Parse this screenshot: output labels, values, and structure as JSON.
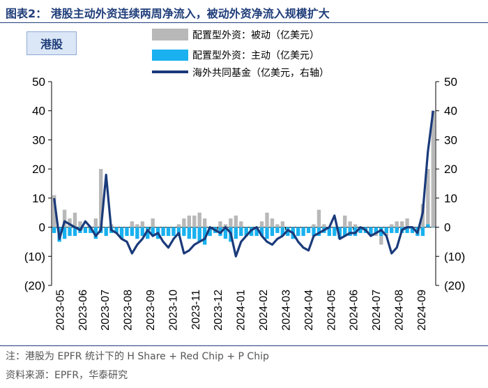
{
  "title": "图表2：  港股主动外资连续两周净流入，被动外资净流入规模扩大",
  "panel_tag": "港股",
  "legend": {
    "passive": "配置型外资：被动（亿美元）",
    "active": "配置型外资：主动（亿美元）",
    "hedge": "海外共同基金（亿美元，右轴）"
  },
  "footnote": "注：港股为 EPFR 统计下的 H Share + Red Chip + P Chip",
  "source": "资料来源：EPFR，华泰研究",
  "colors": {
    "passive": "#b8b8b8",
    "active": "#19b1ef",
    "hedge": "#1a3a7a",
    "title": "#1f3d7a"
  },
  "chart_data": {
    "type": "bar",
    "x_tick_labels": [
      "2023-05",
      "2023-06",
      "2023-07",
      "2023-08",
      "2023-09",
      "2023-10",
      "2023-11",
      "2023-12",
      "2024-01",
      "2024-02",
      "2024-03",
      "2024-04",
      "2024-05",
      "2024-06",
      "2024-07",
      "2024-08",
      "2024-09"
    ],
    "y_left": {
      "ticks": [
        "50",
        "40",
        "30",
        "20",
        "10",
        "0",
        "(10)",
        "(20)"
      ],
      "ylim": [
        -20,
        50
      ]
    },
    "y_right": {
      "ticks": [
        "50",
        "40",
        "30",
        "20",
        "10",
        "0",
        "(10)",
        "(20)"
      ],
      "ylim": [
        -20,
        50
      ]
    },
    "series": [
      {
        "name": "配置型外资：被动（亿美元）",
        "kind": "bar",
        "values": [
          11,
          -2,
          6,
          3,
          5,
          2,
          0,
          -1,
          3,
          20,
          -1,
          1,
          0,
          -2,
          0,
          2,
          1,
          2,
          -2,
          3,
          -1,
          -2,
          -1,
          -2,
          1,
          3,
          4,
          4,
          5,
          3,
          -2,
          -1,
          2,
          1,
          3,
          4,
          2,
          0,
          -1,
          0,
          2,
          5,
          3,
          1,
          2,
          -2,
          -4,
          -3,
          -1,
          0,
          1,
          6,
          1,
          0,
          -1,
          -2,
          4,
          2,
          1,
          -1,
          -1,
          -2,
          -3,
          -6,
          -3,
          1,
          2,
          2,
          3,
          0,
          -3,
          8,
          20,
          40
        ]
      },
      {
        "name": "配置型外资：主动（亿美元）",
        "kind": "bar",
        "values": [
          -2,
          -5,
          -4,
          -3,
          -3,
          -2,
          -2,
          -2,
          -4,
          -2,
          -3,
          -2,
          -2,
          -4,
          -3,
          -3,
          -4,
          -3,
          -4,
          -3,
          -4,
          -3,
          -3,
          -3,
          -3,
          -3,
          -4,
          -4,
          -5,
          -6,
          -3,
          -2,
          -3,
          -4,
          -5,
          -4,
          -3,
          -3,
          -3,
          -3,
          -3,
          -4,
          -3,
          -2,
          -3,
          -3,
          -4,
          -3,
          -3,
          -2,
          -3,
          -3,
          -2,
          -3,
          -3,
          -4,
          -3,
          -3,
          -3,
          -2,
          -2,
          -3,
          -2,
          -3,
          -2,
          -2,
          -2,
          -2,
          -2,
          -2,
          -3,
          -3,
          1,
          0
        ]
      },
      {
        "name": "海外共同基金（亿美元，右轴）",
        "kind": "line",
        "values": [
          10,
          -4,
          2,
          1,
          0,
          -1,
          2,
          0,
          -3,
          -1,
          18,
          -1,
          -2,
          -4,
          -5,
          -9,
          -6,
          -4,
          -1,
          -3,
          -2,
          -5,
          -7,
          -4,
          -2,
          -9,
          -8,
          -6,
          -5,
          -4,
          0,
          -1,
          -2,
          0,
          -2,
          -10,
          -5,
          -3,
          -1,
          0,
          -3,
          -5,
          -6,
          -4,
          -3,
          -1,
          -2,
          -5,
          -7,
          -8,
          -3,
          -2,
          -1,
          0,
          4,
          -4,
          -3,
          -2,
          -2,
          0,
          -1,
          -3,
          -2,
          -1,
          -3,
          -9,
          -7,
          -1,
          0,
          0,
          -2,
          5,
          26,
          40
        ]
      }
    ]
  }
}
